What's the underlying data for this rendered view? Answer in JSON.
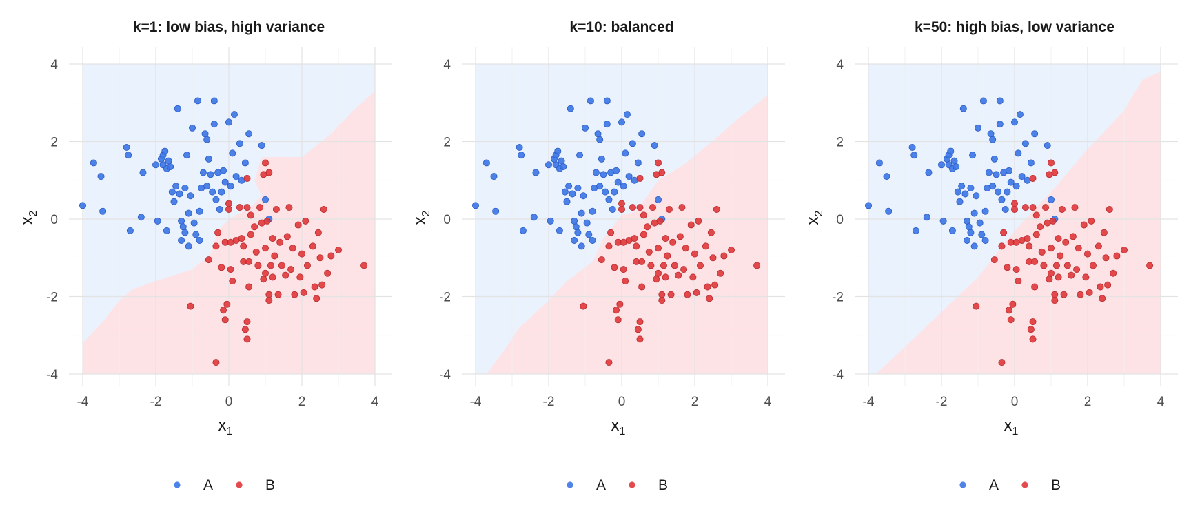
{
  "chart_data": [
    {
      "type": "scatter",
      "title": "k=1: low bias, high variance",
      "xlabel": "x",
      "xlabel_sub": "1",
      "ylabel": "x",
      "ylabel_sub": "2",
      "xlim": [
        -4,
        4
      ],
      "ylim": [
        -4,
        4
      ],
      "xticks": [
        -4,
        -2,
        0,
        2,
        4
      ],
      "yticks": [
        -4,
        -2,
        0,
        2,
        4
      ],
      "tick_labels": [
        "-4",
        "-2",
        "0",
        "2",
        "4"
      ],
      "grid": true,
      "legend": {
        "position": "bottom",
        "entries": [
          "A",
          "B"
        ]
      },
      "decision_boundary": [
        [
          -4.0,
          -3.2
        ],
        [
          -3.4,
          -2.6
        ],
        [
          -3.0,
          -2.1
        ],
        [
          -2.6,
          -1.8
        ],
        [
          -2.0,
          -1.6
        ],
        [
          -1.0,
          -1.3
        ],
        [
          -0.5,
          -0.9
        ],
        [
          -0.3,
          -0.3
        ],
        [
          0.0,
          0.0
        ],
        [
          0.6,
          0.3
        ],
        [
          0.9,
          0.6
        ],
        [
          0.7,
          1.0
        ],
        [
          0.9,
          1.6
        ],
        [
          2.0,
          1.6
        ],
        [
          2.8,
          2.2
        ],
        [
          3.4,
          2.8
        ],
        [
          4.0,
          3.3
        ]
      ]
    },
    {
      "type": "scatter",
      "title": "k=10: balanced",
      "xlabel": "x",
      "xlabel_sub": "1",
      "ylabel": "x",
      "ylabel_sub": "2",
      "xlim": [
        -4,
        4
      ],
      "ylim": [
        -4,
        4
      ],
      "xticks": [
        -4,
        -2,
        0,
        2,
        4
      ],
      "yticks": [
        -4,
        -2,
        0,
        2,
        4
      ],
      "tick_labels": [
        "-4",
        "-2",
        "0",
        "2",
        "4"
      ],
      "grid": true,
      "legend": {
        "position": "bottom",
        "entries": [
          "A",
          "B"
        ]
      },
      "decision_boundary": [
        [
          -3.7,
          -4.0
        ],
        [
          -3.3,
          -3.5
        ],
        [
          -2.8,
          -2.8
        ],
        [
          -2.0,
          -2.1
        ],
        [
          -1.5,
          -1.6
        ],
        [
          -0.8,
          -1.1
        ],
        [
          -0.5,
          -0.5
        ],
        [
          0.0,
          0.1
        ],
        [
          0.4,
          0.2
        ],
        [
          1.0,
          1.0
        ],
        [
          1.7,
          1.4
        ],
        [
          2.6,
          2.1
        ],
        [
          3.2,
          2.6
        ],
        [
          4.0,
          3.2
        ]
      ]
    },
    {
      "type": "scatter",
      "title": "k=50: high bias, low variance",
      "xlabel": "x",
      "xlabel_sub": "1",
      "ylabel": "x",
      "ylabel_sub": "2",
      "xlim": [
        -4,
        4
      ],
      "ylim": [
        -4,
        4
      ],
      "xticks": [
        -4,
        -2,
        0,
        2,
        4
      ],
      "yticks": [
        -4,
        -2,
        0,
        2,
        4
      ],
      "tick_labels": [
        "-4",
        "-2",
        "0",
        "2",
        "4"
      ],
      "grid": true,
      "legend": {
        "position": "bottom",
        "entries": [
          "A",
          "B"
        ]
      },
      "decision_boundary": [
        [
          -3.8,
          -4.0
        ],
        [
          -3.0,
          -3.3
        ],
        [
          -2.0,
          -2.4
        ],
        [
          -1.0,
          -1.5
        ],
        [
          0.0,
          -0.3
        ],
        [
          1.0,
          0.7
        ],
        [
          2.0,
          1.8
        ],
        [
          3.0,
          2.8
        ],
        [
          3.5,
          3.6
        ],
        [
          4.0,
          3.8
        ]
      ]
    }
  ],
  "points": {
    "A": [
      [
        -4.0,
        0.35
      ],
      [
        -3.7,
        1.45
      ],
      [
        -3.5,
        1.1
      ],
      [
        -3.45,
        0.2
      ],
      [
        -2.8,
        1.85
      ],
      [
        -2.75,
        1.65
      ],
      [
        -2.7,
        -0.3
      ],
      [
        -2.4,
        0.05
      ],
      [
        -2.35,
        1.2
      ],
      [
        -2.0,
        1.4
      ],
      [
        -1.95,
        -0.05
      ],
      [
        -1.85,
        1.55
      ],
      [
        -1.8,
        1.65
      ],
      [
        -1.8,
        1.4
      ],
      [
        -1.75,
        1.75
      ],
      [
        -1.7,
        1.3
      ],
      [
        -1.7,
        -0.3
      ],
      [
        -1.65,
        1.5
      ],
      [
        -1.6,
        1.35
      ],
      [
        -1.55,
        0.7
      ],
      [
        -1.5,
        0.45
      ],
      [
        -1.45,
        0.85
      ],
      [
        -1.4,
        2.85
      ],
      [
        -1.35,
        0.65
      ],
      [
        -1.3,
        -0.05
      ],
      [
        -1.3,
        -0.55
      ],
      [
        -1.25,
        -0.2
      ],
      [
        -1.2,
        0.8
      ],
      [
        -1.2,
        -0.35
      ],
      [
        -1.15,
        1.65
      ],
      [
        -1.1,
        0.15
      ],
      [
        -1.1,
        -0.7
      ],
      [
        -1.05,
        0.6
      ],
      [
        -1.0,
        2.35
      ],
      [
        -0.95,
        -0.1
      ],
      [
        -0.9,
        -0.4
      ],
      [
        -0.85,
        3.05
      ],
      [
        -0.8,
        0.2
      ],
      [
        -0.8,
        -0.55
      ],
      [
        -0.75,
        0.8
      ],
      [
        -0.7,
        1.2
      ],
      [
        -0.65,
        2.2
      ],
      [
        -0.6,
        2.05
      ],
      [
        -0.6,
        0.85
      ],
      [
        -0.55,
        1.55
      ],
      [
        -0.5,
        1.15
      ],
      [
        -0.45,
        0.7
      ],
      [
        -0.4,
        3.05
      ],
      [
        -0.4,
        2.45
      ],
      [
        -0.35,
        0.5
      ],
      [
        -0.3,
        1.2
      ],
      [
        -0.25,
        0.25
      ],
      [
        -0.2,
        0.7
      ],
      [
        -0.15,
        1.25
      ],
      [
        -0.1,
        0.95
      ],
      [
        0.0,
        2.5
      ],
      [
        0.05,
        0.85
      ],
      [
        0.1,
        1.7
      ],
      [
        0.15,
        2.7
      ],
      [
        0.2,
        1.1
      ],
      [
        0.3,
        1.95
      ],
      [
        0.35,
        1.0
      ],
      [
        0.45,
        1.45
      ],
      [
        0.55,
        2.2
      ],
      [
        0.9,
        1.9
      ],
      [
        1.0,
        0.5
      ],
      [
        1.1,
        0.0
      ]
    ],
    "B": [
      [
        -1.05,
        -2.25
      ],
      [
        -0.55,
        -1.05
      ],
      [
        -0.35,
        -3.7
      ],
      [
        -0.3,
        -0.35
      ],
      [
        -0.2,
        -1.25
      ],
      [
        -0.15,
        -2.35
      ],
      [
        -0.1,
        -2.6
      ],
      [
        -0.05,
        -2.2
      ],
      [
        -0.1,
        -0.6
      ],
      [
        0.0,
        0.25
      ],
      [
        0.0,
        0.4
      ],
      [
        0.05,
        -0.6
      ],
      [
        0.1,
        -1.6
      ],
      [
        0.2,
        -0.55
      ],
      [
        0.3,
        0.3
      ],
      [
        0.35,
        -0.5
      ],
      [
        0.4,
        -0.7
      ],
      [
        0.4,
        -1.1
      ],
      [
        0.45,
        -2.85
      ],
      [
        0.5,
        -2.65
      ],
      [
        0.5,
        -3.1
      ],
      [
        0.5,
        0.3
      ],
      [
        0.55,
        -1.75
      ],
      [
        0.55,
        -1.1
      ],
      [
        0.6,
        0.1
      ],
      [
        0.6,
        -0.4
      ],
      [
        0.7,
        -0.2
      ],
      [
        0.75,
        -0.85
      ],
      [
        0.8,
        -1.2
      ],
      [
        0.85,
        0.3
      ],
      [
        0.9,
        -0.1
      ],
      [
        0.95,
        -1.55
      ],
      [
        1.0,
        -0.75
      ],
      [
        1.0,
        -1.4
      ],
      [
        1.05,
        -0.05
      ],
      [
        1.1,
        -1.95
      ],
      [
        1.1,
        -2.1
      ],
      [
        1.15,
        -1.2
      ],
      [
        1.2,
        -0.5
      ],
      [
        1.2,
        -1.5
      ],
      [
        1.25,
        -0.95
      ],
      [
        1.3,
        0.25
      ],
      [
        1.35,
        -1.95
      ],
      [
        1.4,
        -0.6
      ],
      [
        1.45,
        -1.2
      ],
      [
        1.55,
        -1.45
      ],
      [
        1.6,
        -0.45
      ],
      [
        1.65,
        0.3
      ],
      [
        1.7,
        -1.3
      ],
      [
        1.75,
        -0.75
      ],
      [
        1.8,
        -1.95
      ],
      [
        1.9,
        -0.15
      ],
      [
        1.95,
        -1.5
      ],
      [
        2.0,
        -0.9
      ],
      [
        2.05,
        -1.9
      ],
      [
        2.1,
        -0.05
      ],
      [
        2.15,
        -1.2
      ],
      [
        2.3,
        -0.7
      ],
      [
        2.35,
        -1.75
      ],
      [
        2.4,
        -2.05
      ],
      [
        2.45,
        -0.35
      ],
      [
        2.5,
        -1.0
      ],
      [
        2.55,
        -1.7
      ],
      [
        2.6,
        0.25
      ],
      [
        2.7,
        -1.4
      ],
      [
        2.8,
        -0.95
      ],
      [
        3.0,
        -0.8
      ],
      [
        3.7,
        -1.2
      ],
      [
        1.0,
        1.45
      ],
      [
        1.1,
        1.2
      ],
      [
        0.95,
        1.15
      ],
      [
        0.5,
        1.05
      ],
      [
        -0.35,
        -0.7
      ],
      [
        0.05,
        -1.3
      ]
    ]
  },
  "colors": {
    "A": "#3b74e6",
    "B": "#e0363a",
    "region_A": "#eaf2fd",
    "region_B": "#fde3e5"
  }
}
